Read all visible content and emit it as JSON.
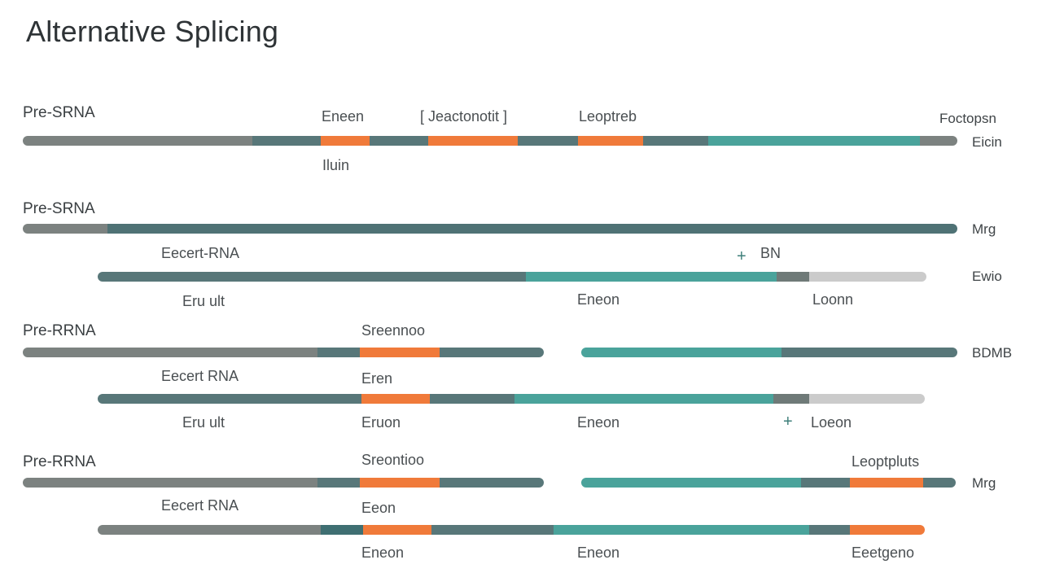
{
  "title": "Alternative Splicing",
  "colors": {
    "grey": "#7c8280",
    "slate": "#587779",
    "dark_teal": "#4f7275",
    "teal": "#4aa39b",
    "orange": "#f07a3a",
    "light": "#cbcbcb"
  },
  "rows": {
    "r1": {
      "label": "Pre-SRNA",
      "annotations": [
        "Eneen",
        "[ Jeactonotit ]",
        "Leoptreb",
        "Foctopsn",
        "Eicin",
        "Iluin"
      ]
    },
    "r2": {
      "label": "Pre-SRNA",
      "side": "Mrg",
      "sub_label": "Eecert-RNA",
      "sub_side": "Ewio",
      "annotations": [
        "BN",
        "Eru ult",
        "Eneon",
        "Loonn"
      ]
    },
    "r3": {
      "label": "Pre-RRNA",
      "side": "BDMB",
      "sub_label": "Eecert RNA",
      "annotations": [
        "Sreennoo",
        "Eren",
        "Eru ult",
        "Eruon",
        "Eneon",
        "Loeon"
      ]
    },
    "r4": {
      "label": "Pre-RRNA",
      "side": "Mrg",
      "sub_label": "Eecert RNA",
      "annotations": [
        "Sreontioo",
        "Leoptpluts",
        "Eeon",
        "Eneon",
        "Eneon",
        "Eeetgeno"
      ]
    }
  }
}
